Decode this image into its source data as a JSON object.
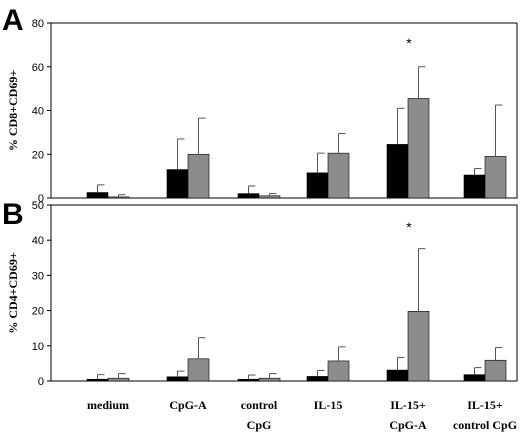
{
  "chart_data": [
    {
      "type": "bar",
      "panel": "A",
      "ylabel": "% CD8+CD69+",
      "ylim": [
        0,
        80
      ],
      "yticks": [
        "0",
        "20",
        "40",
        "60",
        "80"
      ],
      "categories": [
        [
          "medium"
        ],
        [
          "CpG-A"
        ],
        [
          "control",
          "CpG"
        ],
        [
          "IL-15"
        ],
        [
          "IL-15+",
          "CpG-A"
        ],
        [
          "IL-15+",
          "control CpG"
        ]
      ],
      "series": [
        {
          "color": "#000000",
          "values": [
            2.5,
            13,
            2,
            11.5,
            24.5,
            10.5
          ],
          "errors": [
            3.5,
            14,
            3.5,
            9,
            16.5,
            3
          ]
        },
        {
          "color": "#8c8c8c",
          "values": [
            0.5,
            20,
            1,
            20.5,
            45.5,
            19
          ],
          "errors": [
            1,
            16.5,
            1,
            9,
            14.5,
            23.5
          ]
        }
      ],
      "annotations": [
        {
          "category_index": 4,
          "text": "*"
        }
      ]
    },
    {
      "type": "bar",
      "panel": "B",
      "ylabel": "% CD4+CD69+",
      "ylim": [
        0,
        50
      ],
      "yticks": [
        "0",
        "10",
        "20",
        "30",
        "40",
        "50"
      ],
      "categories": [
        [
          "medium"
        ],
        [
          "CpG-A"
        ],
        [
          "control",
          "CpG"
        ],
        [
          "IL-15"
        ],
        [
          "IL-15+",
          "CpG-A"
        ],
        [
          "IL-15+",
          "control CpG"
        ]
      ],
      "series": [
        {
          "color": "#000000",
          "values": [
            0.5,
            1.2,
            0.5,
            1.3,
            3.1,
            1.8
          ],
          "errors": [
            1.3,
            1.6,
            1.2,
            1.7,
            3.6,
            2.0
          ]
        },
        {
          "color": "#8c8c8c",
          "values": [
            0.8,
            6.3,
            0.8,
            5.7,
            19.8,
            5.9
          ],
          "errors": [
            1.3,
            6.0,
            1.3,
            4.0,
            17.8,
            3.6
          ]
        }
      ],
      "annotations": [
        {
          "category_index": 4,
          "text": "*"
        }
      ]
    }
  ]
}
